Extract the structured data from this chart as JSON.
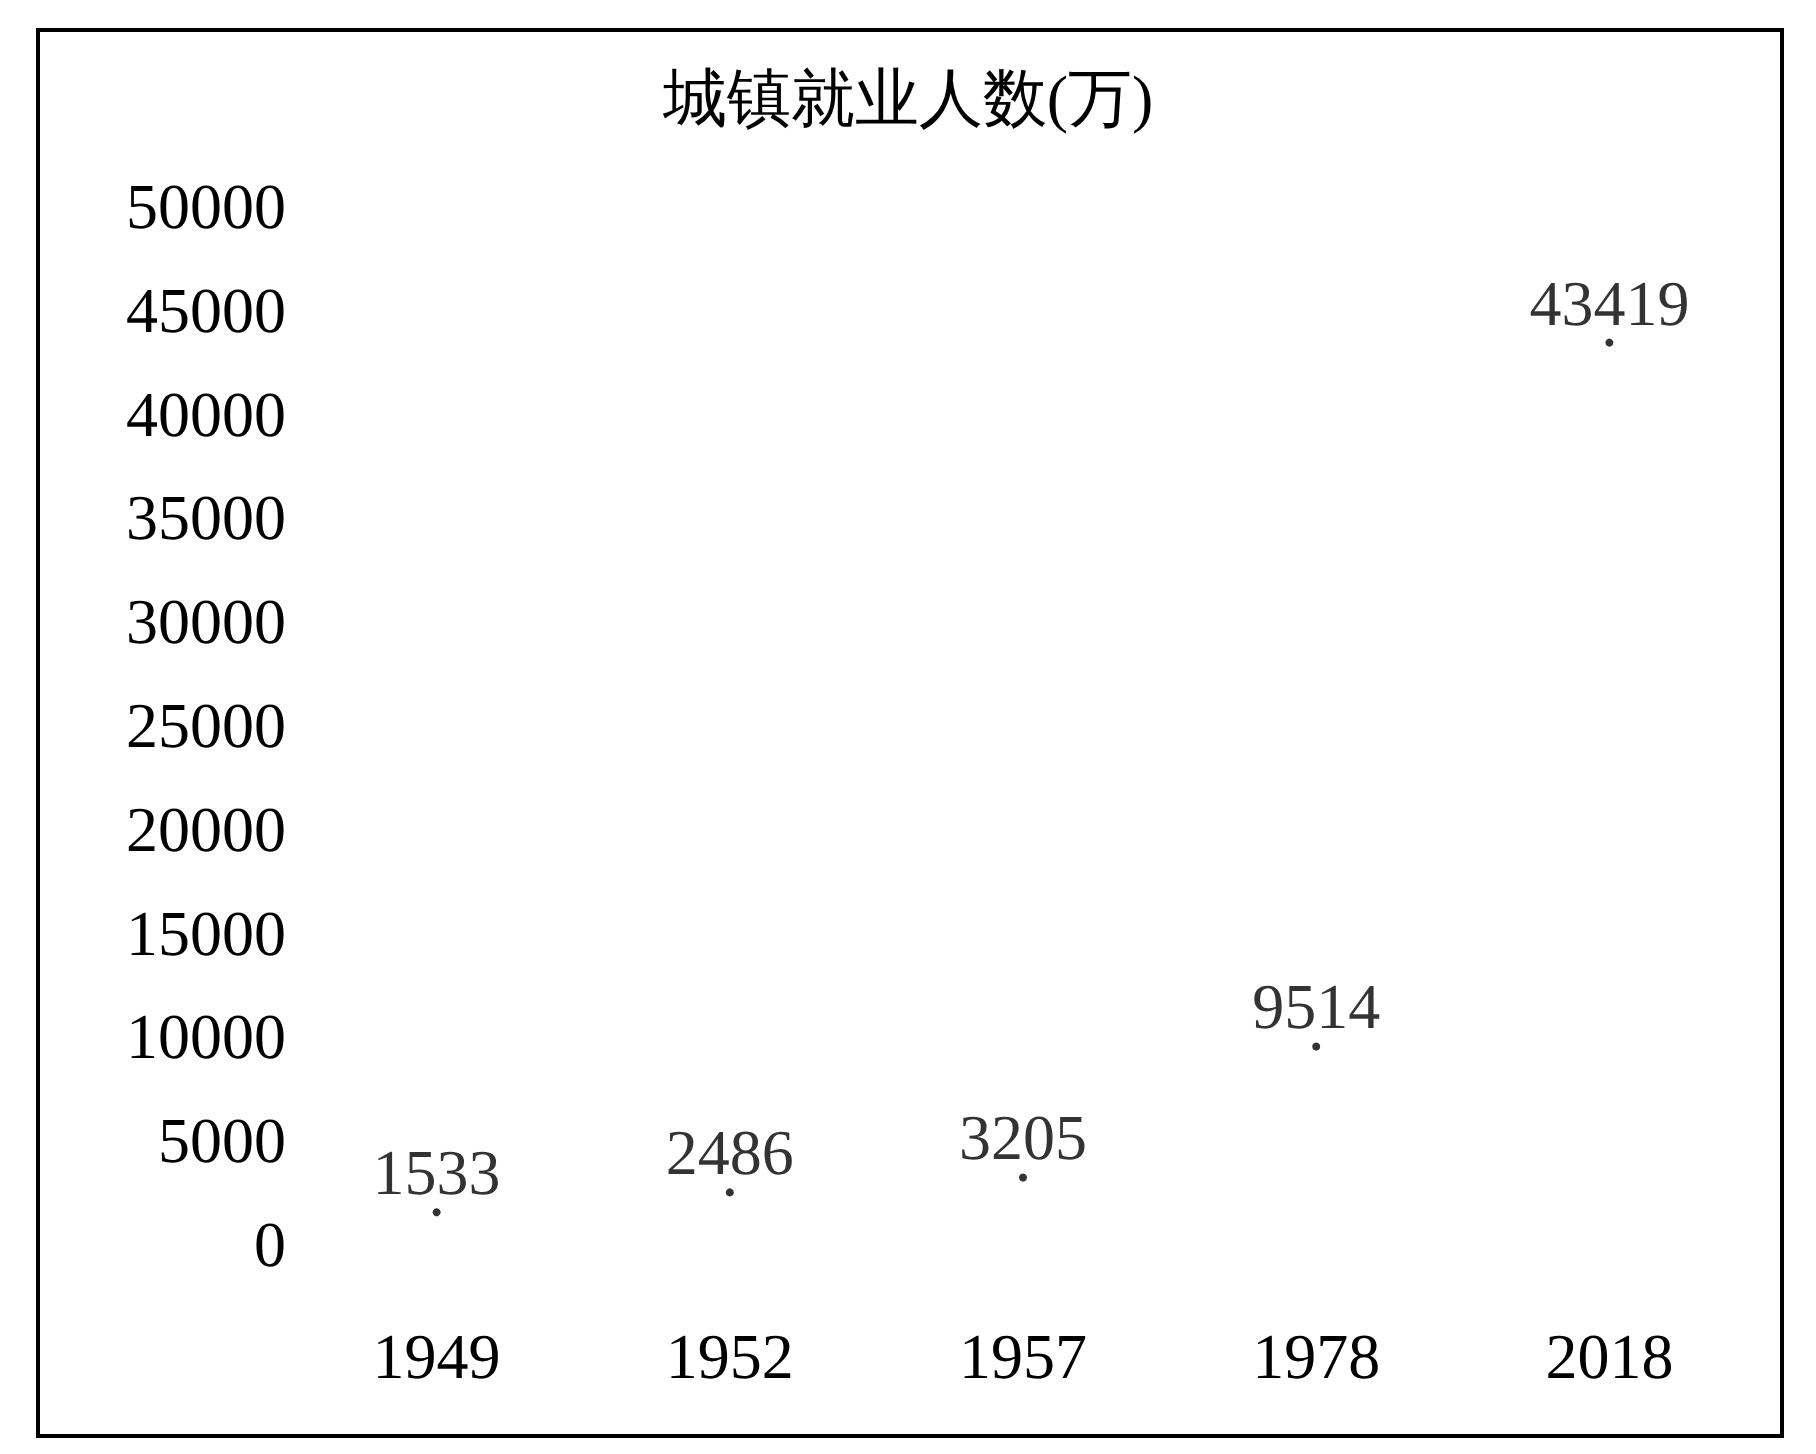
{
  "chart_data": {
    "type": "scatter",
    "title": "城镇就业人数(万)",
    "categories": [
      "1949",
      "1952",
      "1957",
      "1978",
      "2018"
    ],
    "values": [
      1533,
      2486,
      3205,
      9514,
      43419
    ],
    "color": "#000000",
    "marker": "circle",
    "data_labels": true,
    "ylim": [
      0,
      50000
    ],
    "yticks": [
      0,
      5000,
      10000,
      15000,
      20000,
      25000,
      30000,
      35000,
      40000,
      45000,
      50000
    ],
    "grid": false
  }
}
